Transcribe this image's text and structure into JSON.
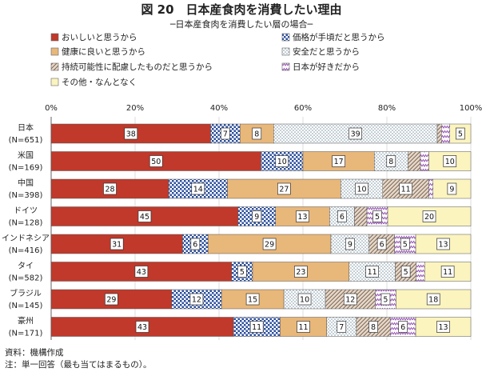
{
  "chart_data": {
    "type": "bar",
    "orientation": "horizontal",
    "stacked": true,
    "percent": true,
    "title": "図 20　日本産食肉を消費したい理由",
    "subtitle": "─日本産食肉を消費したい層の場合─",
    "categories": [
      {
        "name": "日本",
        "n": "(N=651)"
      },
      {
        "name": "米国",
        "n": "(N=169)"
      },
      {
        "name": "中国",
        "n": "(N=398)"
      },
      {
        "name": "ドイツ",
        "n": "(N=128)"
      },
      {
        "name": "インドネシア",
        "n": "(N=416)"
      },
      {
        "name": "タイ",
        "n": "(N=582)"
      },
      {
        "name": "ブラジル",
        "n": "(N=145)"
      },
      {
        "name": "豪州",
        "n": "(N=171)"
      }
    ],
    "series": [
      {
        "name": "おいしいと思うから",
        "color": "#c0392b",
        "pattern": "solid",
        "values": [
          38,
          50,
          28,
          45,
          31,
          43,
          29,
          43
        ]
      },
      {
        "name": "価格が手頃だと思うから",
        "color": "#2b4f9e",
        "pattern": "check",
        "values": [
          7,
          10,
          14,
          9,
          6,
          5,
          12,
          11
        ]
      },
      {
        "name": "健康に良いと思うから",
        "color": "#e8b77a",
        "pattern": "solid",
        "values": [
          8,
          17,
          27,
          13,
          29,
          23,
          15,
          11
        ]
      },
      {
        "name": "安全だと思うから",
        "color": "#9bb0be",
        "pattern": "dots",
        "values": [
          39,
          8,
          10,
          6,
          9,
          11,
          10,
          7
        ]
      },
      {
        "name": "持続可能性に配慮したものだと思うから",
        "color": "#b39a86",
        "pattern": "diagonal",
        "values": [
          1,
          3,
          11,
          3,
          6,
          5,
          12,
          8
        ]
      },
      {
        "name": "日本が好きだから",
        "color": "#9b59b6",
        "pattern": "zigzag",
        "values": [
          2,
          2,
          1,
          5,
          5,
          2,
          5,
          6
        ]
      },
      {
        "name": "その他・なんとなく",
        "color": "#fbf4bf",
        "pattern": "solid",
        "values": [
          5,
          10,
          9,
          20,
          13,
          11,
          18,
          13
        ]
      }
    ],
    "labels": [
      [
        "38",
        "7",
        "8",
        "39",
        null,
        null,
        "5"
      ],
      [
        "50",
        "10",
        "17",
        "8",
        null,
        null,
        "10"
      ],
      [
        "28",
        "14",
        "27",
        "10",
        "11",
        null,
        "9"
      ],
      [
        "45",
        "9",
        "13",
        "6",
        null,
        "5",
        "20"
      ],
      [
        "31",
        "6",
        "29",
        "9",
        "6",
        "5",
        "13"
      ],
      [
        "43",
        "5",
        "23",
        "11",
        "5",
        null,
        "11"
      ],
      [
        "29",
        "12",
        "15",
        "10",
        "12",
        "5",
        "18"
      ],
      [
        "43",
        "11",
        "11",
        "7",
        "8",
        "6",
        "13"
      ]
    ],
    "x_ticks": [
      "0%",
      "20%",
      "40%",
      "60%",
      "80%",
      "100%"
    ],
    "xlim": [
      0,
      100
    ],
    "legend_position": "top",
    "notes": [
      "資料：機構作成",
      "注：単一回答（最も当てはまるもの）。"
    ]
  }
}
